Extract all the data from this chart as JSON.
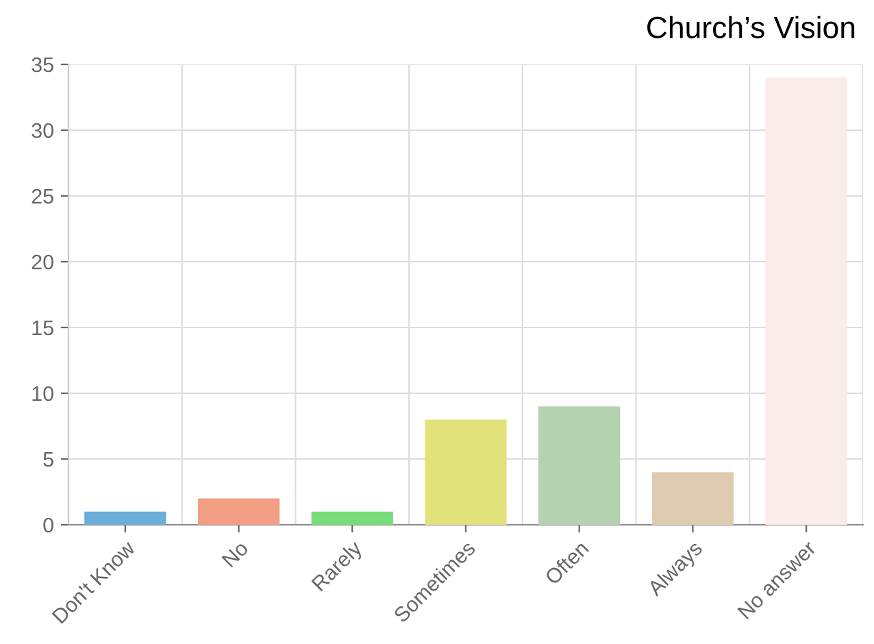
{
  "chart_data": {
    "type": "bar",
    "title": "Church’s Vision",
    "categories": [
      "Don't Know",
      "No",
      "Rarely",
      "Sometimes",
      "Often",
      "Always",
      "No answer"
    ],
    "values": [
      1,
      2,
      1,
      8,
      9,
      4,
      34
    ],
    "colors": [
      "#6aaed9",
      "#f19e84",
      "#78dc78",
      "#e2e27a",
      "#b4d2b0",
      "#dfcbb0",
      "#faece8"
    ],
    "ylim": [
      0,
      35
    ],
    "yticks": [
      0,
      5,
      10,
      15,
      20,
      25,
      30,
      35
    ],
    "grid": true
  }
}
